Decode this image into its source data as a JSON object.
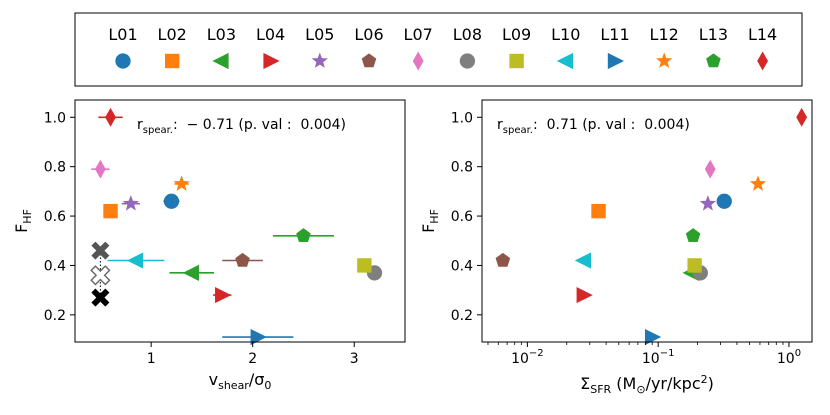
{
  "legend": {
    "entries": [
      {
        "label": "L01",
        "marker": "circle",
        "color": "#1f77b4"
      },
      {
        "label": "L02",
        "marker": "square",
        "color": "#ff7f0e"
      },
      {
        "label": "L03",
        "marker": "triangle-left",
        "color": "#2ca02c"
      },
      {
        "label": "L04",
        "marker": "triangle-right",
        "color": "#d62728"
      },
      {
        "label": "L05",
        "marker": "star",
        "color": "#9467bd"
      },
      {
        "label": "L06",
        "marker": "pentagon",
        "color": "#8c564b"
      },
      {
        "label": "L07",
        "marker": "thin-diamond",
        "color": "#e377c2"
      },
      {
        "label": "L08",
        "marker": "circle",
        "color": "#7f7f7f"
      },
      {
        "label": "L09",
        "marker": "square",
        "color": "#bcbd22"
      },
      {
        "label": "L10",
        "marker": "triangle-left",
        "color": "#17becf"
      },
      {
        "label": "L11",
        "marker": "triangle-right",
        "color": "#1f77b4"
      },
      {
        "label": "L12",
        "marker": "star",
        "color": "#ff7f0e"
      },
      {
        "label": "L13",
        "marker": "pentagon",
        "color": "#2ca02c"
      },
      {
        "label": "L14",
        "marker": "thin-diamond",
        "color": "#d62728"
      }
    ]
  },
  "chart_data": [
    {
      "type": "scatter",
      "name": "left-panel",
      "xscale": "linear",
      "xlim": [
        0.25,
        3.5
      ],
      "ylim": [
        0.09,
        1.07
      ],
      "xticks": [
        1,
        2,
        3
      ],
      "xtick_labels": [
        "1",
        "2",
        "3"
      ],
      "yticks": [
        0.2,
        0.4,
        0.6,
        0.8,
        1.0
      ],
      "ytick_labels": [
        "0.2",
        "0.4",
        "0.6",
        "0.8",
        "1.0"
      ],
      "xlabel_main": "v",
      "xlabel_sub": "shear",
      "xlabel_rest": "/σ",
      "xlabel_sub2": "0",
      "ylabel_main": "F",
      "ylabel_sub": "HF",
      "annotation": {
        "r": "r",
        "sub": "spear.",
        "text": ":  − 0.71 (p. val :  0.004)"
      },
      "points": [
        {
          "label": "L01",
          "x": 1.2,
          "y": 0.66,
          "xerr": 0.08
        },
        {
          "label": "L02",
          "x": 0.6,
          "y": 0.62,
          "xerr": 0.07
        },
        {
          "label": "L03",
          "x": 1.4,
          "y": 0.37,
          "xerr": 0.22
        },
        {
          "label": "L04",
          "x": 1.7,
          "y": 0.28,
          "xerr": 0.09
        },
        {
          "label": "L05",
          "x": 0.8,
          "y": 0.65,
          "xerr": 0.09
        },
        {
          "label": "L06",
          "x": 1.9,
          "y": 0.42,
          "xerr": 0.2
        },
        {
          "label": "L07",
          "x": 0.5,
          "y": 0.79,
          "xerr": 0.09
        },
        {
          "label": "L08",
          "x": 3.2,
          "y": 0.37,
          "xerr": 0.06
        },
        {
          "label": "L09",
          "x": 3.1,
          "y": 0.4,
          "xerr": 0.06
        },
        {
          "label": "L10",
          "x": 0.85,
          "y": 0.42,
          "xerr": 0.28
        },
        {
          "label": "L11",
          "x": 2.05,
          "y": 0.11,
          "xerr": 0.35
        },
        {
          "label": "L12",
          "x": 1.3,
          "y": 0.73,
          "xerr": 0.07
        },
        {
          "label": "L13",
          "x": 2.5,
          "y": 0.52,
          "xerr": 0.3
        },
        {
          "label": "L14",
          "x": 0.6,
          "y": 1.0,
          "xerr": 0.12
        }
      ],
      "extra_markers": [
        {
          "marker": "x",
          "color": "#555555",
          "x": 0.5,
          "y": 0.46
        },
        {
          "marker": "x-open",
          "color": "#666666",
          "x": 0.5,
          "y": 0.36
        },
        {
          "marker": "x",
          "color": "#000000",
          "x": 0.5,
          "y": 0.27
        }
      ],
      "extra_link_line": {
        "x": 0.5,
        "y_from": 0.27,
        "y_to": 0.46,
        "style": "dotted"
      }
    },
    {
      "type": "scatter",
      "name": "right-panel",
      "xscale": "log",
      "xlim": [
        0.0045,
        1.5
      ],
      "ylim": [
        0.09,
        1.07
      ],
      "xticks": [
        0.01,
        0.1,
        1
      ],
      "xtick_labels": [
        "10",
        "10",
        "10"
      ],
      "xtick_exps": [
        "−2",
        "−1",
        "0"
      ],
      "yticks": [
        0.2,
        0.4,
        0.6,
        0.8,
        1.0
      ],
      "ytick_labels": [
        "0.2",
        "0.4",
        "0.6",
        "0.8",
        "1.0"
      ],
      "xlabel_main": "Σ",
      "xlabel_sub": "SFR",
      "xlabel_rest": " (M",
      "xlabel_sub2": "⊙",
      "xlabel_rest2": "/yr/kpc",
      "xlabel_sup": "2",
      "xlabel_end": ")",
      "ylabel_main": "F",
      "ylabel_sub": "HF",
      "annotation": {
        "r": "r",
        "sub": "spear.",
        "text": ":  0.71 (p. val :  0.004)"
      },
      "points": [
        {
          "label": "L01",
          "x": 0.32,
          "y": 0.66
        },
        {
          "label": "L02",
          "x": 0.035,
          "y": 0.62
        },
        {
          "label": "L03",
          "x": 0.18,
          "y": 0.37
        },
        {
          "label": "L04",
          "x": 0.027,
          "y": 0.28
        },
        {
          "label": "L05",
          "x": 0.24,
          "y": 0.65
        },
        {
          "label": "L06",
          "x": 0.0065,
          "y": 0.42
        },
        {
          "label": "L07",
          "x": 0.25,
          "y": 0.79
        },
        {
          "label": "L08",
          "x": 0.21,
          "y": 0.37
        },
        {
          "label": "L09",
          "x": 0.19,
          "y": 0.4
        },
        {
          "label": "L10",
          "x": 0.027,
          "y": 0.42
        },
        {
          "label": "L11",
          "x": 0.09,
          "y": 0.11
        },
        {
          "label": "L12",
          "x": 0.58,
          "y": 0.73
        },
        {
          "label": "L13",
          "x": 0.185,
          "y": 0.52
        },
        {
          "label": "L14",
          "x": 1.25,
          "y": 1.0
        }
      ]
    }
  ]
}
